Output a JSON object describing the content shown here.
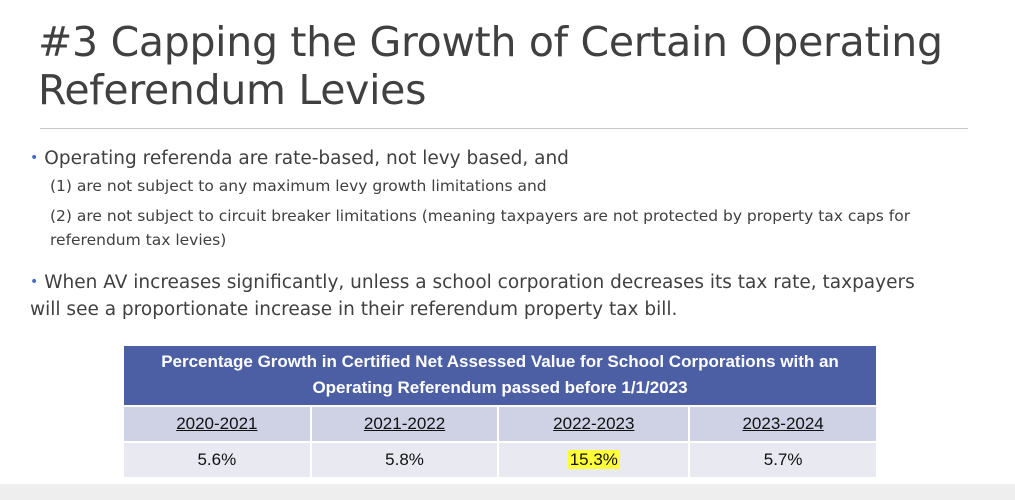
{
  "slide": {
    "title": "#3 Capping the Growth of Certain Operating Referendum Levies",
    "bullets": [
      {
        "text": "Operating referenda are rate-based, not levy based, and",
        "sub": [
          "(1) are not subject to any maximum levy growth limitations and",
          "(2) are not subject to circuit breaker limitations (meaning taxpayers are not protected by property tax caps for referendum tax levies)"
        ]
      },
      {
        "text": "When AV increases significantly, unless a school corporation decreases its tax rate, taxpayers will see a proportionate increase in their referendum property tax bill."
      }
    ],
    "bullet_color": "#4a6cc0"
  },
  "table": {
    "header": "Percentage Growth in Certified Net Assessed Value for School Corporations with an Operating Referendum passed before 1/1/2023",
    "columns": [
      "2020-2021",
      "2021-2022",
      "2022-2023",
      "2023-2024"
    ],
    "values": [
      "5.6%",
      "5.8%",
      "15.3%",
      "5.7%"
    ],
    "highlighted": "15.3%",
    "header_color": "#4c5fa4",
    "highlight_color": "#ffff3a"
  }
}
